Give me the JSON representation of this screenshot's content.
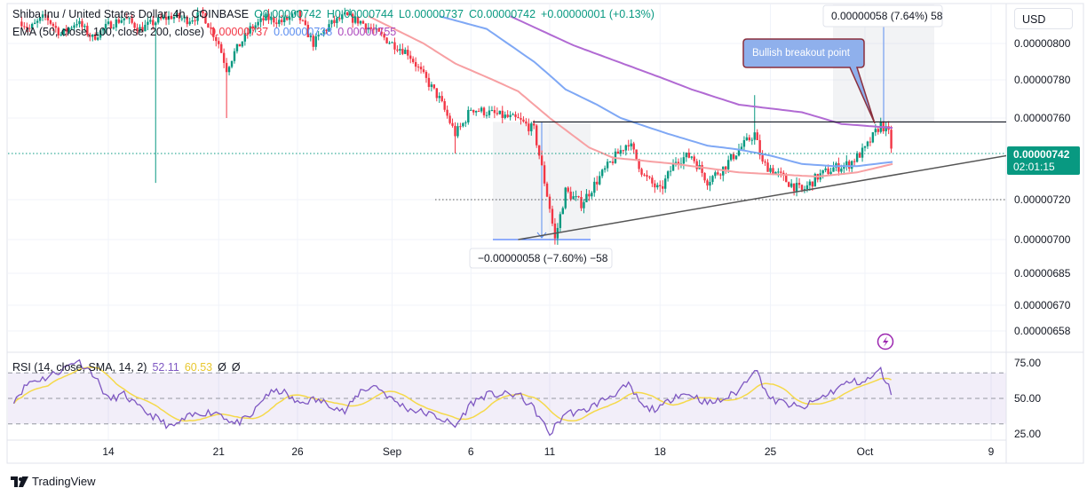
{
  "header": {
    "symbol": "Shiba Inu / United States Dollar, 4h, COINBASE",
    "open": "O0.00000742",
    "high": "H0.00000744",
    "low": "L0.00000737",
    "close": "C0.00000742",
    "change": "+0.00000001 (+0.13%)",
    "ema_label": "EMA (50, close, 100, close, 200, close)",
    "ema50": "0.00000737",
    "ema100": "0.00000738",
    "ema200": "0.00000755"
  },
  "currency_button": "USD",
  "current_price": {
    "value": "0.00000742",
    "countdown": "02:01:15"
  },
  "annotations": {
    "callout": "Bullish breakout point",
    "measure_down": "−0.00000058 (−7.60%) −58",
    "measure_up": "0.00000058 (7.64%) 58"
  },
  "rsi_legend": {
    "label": "RSI (14, close, SMA, 14, 2)",
    "rsi": "52.11",
    "sma": "60.53",
    "extra1": "Ø",
    "extra2": "Ø"
  },
  "branding": "TradingView",
  "icons": {
    "alert": "lightning-icon",
    "logo": "tradingview-logo"
  },
  "colors": {
    "up": "#089981",
    "down": "#f23645",
    "ema50": "#f7a0a3",
    "ema100": "#7fa8f5",
    "ema200": "#b16ad3",
    "rsi": "#7e57c2",
    "rsi_sma": "#f5d94a",
    "accent": "#2962ff"
  },
  "chart_data": [
    {
      "type": "candlestick",
      "interval": "4h",
      "price_axis": {
        "ticks": [
          "0.00000800",
          "0.00000780",
          "0.00000760",
          "0.00000720",
          "0.00000700",
          "0.00000685",
          "0.00000670",
          "0.00000658"
        ]
      },
      "time_axis": {
        "ticks": [
          "14",
          "21",
          "26",
          "Sep",
          "6",
          "11",
          "18",
          "25",
          "Oct",
          "9"
        ]
      },
      "close": [
        [
          "Aug 8 12:00",
          8.12e-06
        ],
        [
          "Aug 9",
          8.08e-06
        ],
        [
          "Aug 10",
          8.15e-06
        ],
        [
          "Aug 11",
          8.05e-06
        ],
        [
          "Aug 12",
          8.12e-06
        ],
        [
          "Aug 13",
          8.03e-06
        ],
        [
          "Aug 14",
          8.1e-06
        ],
        [
          "Aug 15",
          8.14e-06
        ],
        [
          "Aug 16",
          8.08e-06
        ],
        [
          "Aug 17",
          8.12e-06
        ],
        [
          "Aug 18",
          8.15e-06
        ],
        [
          "Aug 19",
          8.13e-06
        ],
        [
          "Aug 20",
          8.16e-06
        ],
        [
          "Aug 21",
          8e-06
        ],
        [
          "Aug 21 12:00",
          7.86e-06
        ],
        [
          "Aug 22",
          7.95e-06
        ],
        [
          "Aug 23",
          8.08e-06
        ],
        [
          "Aug 24",
          8.14e-06
        ],
        [
          "Aug 25",
          8.12e-06
        ],
        [
          "Aug 26",
          8.16e-06
        ],
        [
          "Aug 27",
          8e-06
        ],
        [
          "Aug 28",
          8.1e-06
        ],
        [
          "Aug 29",
          8.15e-06
        ],
        [
          "Aug 30",
          8.12e-06
        ],
        [
          "Aug 31",
          8.06e-06
        ],
        [
          "Sep 1",
          8e-06
        ],
        [
          "Sep 2",
          7.95e-06
        ],
        [
          "Sep 3",
          7.82e-06
        ],
        [
          "Sep 4",
          7.7e-06
        ],
        [
          "Sep 5",
          7.52e-06
        ],
        [
          "Sep 5 12:00",
          7.57e-06
        ],
        [
          "Sep 6",
          7.65e-06
        ],
        [
          "Sep 7",
          7.63e-06
        ],
        [
          "Sep 8",
          7.61e-06
        ],
        [
          "Sep 9",
          7.59e-06
        ],
        [
          "Sep 10",
          7.54e-06
        ],
        [
          "Sep 10 12:00",
          7.35e-06
        ],
        [
          "Sep 11",
          7.16e-06
        ],
        [
          "Sep 11 08:00",
          7e-06
        ],
        [
          "Sep 12",
          7.24e-06
        ],
        [
          "Sep 13",
          7.18e-06
        ],
        [
          "Sep 14",
          7.29e-06
        ],
        [
          "Sep 15",
          7.39e-06
        ],
        [
          "Sep 16",
          7.48e-06
        ],
        [
          "Sep 17",
          7.31e-06
        ],
        [
          "Sep 18",
          7.24e-06
        ],
        [
          "Sep 19",
          7.39e-06
        ],
        [
          "Sep 20",
          7.41e-06
        ],
        [
          "Sep 21",
          7.29e-06
        ],
        [
          "Sep 22",
          7.35e-06
        ],
        [
          "Sep 23",
          7.44e-06
        ],
        [
          "Sep 24",
          7.52e-06
        ],
        [
          "Sep 24 12:00",
          7.37e-06
        ],
        [
          "Sep 25",
          7.35e-06
        ],
        [
          "Sep 26",
          7.29e-06
        ],
        [
          "Sep 27",
          7.24e-06
        ],
        [
          "Sep 28",
          7.31e-06
        ],
        [
          "Sep 29",
          7.35e-06
        ],
        [
          "Sep 30",
          7.37e-06
        ],
        [
          "Oct 1",
          7.44e-06
        ],
        [
          "Oct 2",
          7.57e-06
        ],
        [
          "Oct 2 12:00",
          7.52e-06
        ],
        [
          "Oct 2 18:00",
          7.42e-06
        ]
      ],
      "wicks": [
        [
          "Aug 17",
          "low",
          7.28e-06
        ],
        [
          "Aug 21 12:00",
          "low",
          7.6e-06
        ],
        [
          "Sep 24",
          "high",
          7.72e-06
        ],
        [
          "Sep 5",
          "low",
          7.42e-06
        ]
      ],
      "ema50": [
        [
          "Aug 30 12:00",
          8.15e-06
        ],
        [
          "Sep 3",
          8e-06
        ],
        [
          "Sep 5",
          7.89e-06
        ],
        [
          "Sep 9",
          7.74e-06
        ],
        [
          "Sep 10",
          7.67e-06
        ],
        [
          "Sep 11",
          7.6e-06
        ],
        [
          "Sep 13 12:00",
          7.45e-06
        ],
        [
          "Sep 15",
          7.4e-06
        ],
        [
          "Sep 19",
          7.37e-06
        ],
        [
          "Sep 23",
          7.33e-06
        ],
        [
          "Sep 28",
          7.31e-06
        ],
        [
          "Sep 30 12:00",
          7.33e-06
        ],
        [
          "Oct 2 18:00",
          7.37e-06
        ]
      ],
      "ema100": [
        [
          "Sep 4",
          8.15e-06
        ],
        [
          "Sep 7",
          8.08e-06
        ],
        [
          "Sep 10",
          7.9e-06
        ],
        [
          "Sep 12",
          7.75e-06
        ],
        [
          "Sep 14",
          7.67e-06
        ],
        [
          "Sep 15 12:00",
          7.6e-06
        ],
        [
          "Sep 18 12:00",
          7.52e-06
        ],
        [
          "Sep 21",
          7.46e-06
        ],
        [
          "Sep 23",
          7.44e-06
        ],
        [
          "Sep 25",
          7.41e-06
        ],
        [
          "Sep 27",
          7.37e-06
        ],
        [
          "Sep 29",
          7.36e-06
        ],
        [
          "Sep 30 12:00",
          7.36e-06
        ],
        [
          "Oct 2 18:00",
          7.38e-06
        ]
      ],
      "ema200": [
        [
          "Sep 8 12:00",
          8.15e-06
        ],
        [
          "Sep 12 12:00",
          7.99e-06
        ],
        [
          "Sep 20",
          7.75e-06
        ],
        [
          "Sep 23",
          7.67e-06
        ],
        [
          "Sep 27",
          7.63e-06
        ],
        [
          "Sep 29 12:00",
          7.57e-06
        ],
        [
          "Oct 2 18:00",
          7.55e-06
        ]
      ],
      "resistance_level": 7.58e-06,
      "support_level": 7.2e-06,
      "trendline": [
        [
          "Sep 9",
          7e-06
        ],
        [
          "Oct 10",
          7.41e-06
        ]
      ]
    },
    {
      "type": "line",
      "name": "RSI",
      "ylim": [
        0,
        100
      ],
      "levels": [
        70,
        50,
        30
      ],
      "axis_ticks": [
        "75.00",
        "50.00",
        "25.00"
      ],
      "rsi": [
        [
          "Aug 8",
          49
        ],
        [
          "Aug 9",
          63
        ],
        [
          "Aug 10",
          66
        ],
        [
          "Aug 11",
          72
        ],
        [
          "Aug 12",
          80
        ],
        [
          "Aug 13",
          70
        ],
        [
          "Aug 14",
          49
        ],
        [
          "Aug 15",
          53
        ],
        [
          "Aug 16",
          42
        ],
        [
          "Aug 17",
          35
        ],
        [
          "Aug 18",
          27
        ],
        [
          "Aug 19",
          35
        ],
        [
          "Aug 20",
          39
        ],
        [
          "Aug 21",
          39
        ],
        [
          "Aug 22",
          30
        ],
        [
          "Aug 23",
          35
        ],
        [
          "Aug 24",
          53
        ],
        [
          "Aug 25",
          56
        ],
        [
          "Aug 26",
          46
        ],
        [
          "Aug 27",
          49
        ],
        [
          "Aug 28",
          46
        ],
        [
          "Aug 29",
          39
        ],
        [
          "Aug 30",
          56
        ],
        [
          "Aug 31",
          60
        ],
        [
          "Sep 1",
          49
        ],
        [
          "Sep 2",
          42
        ],
        [
          "Sep 3",
          39
        ],
        [
          "Sep 4",
          35
        ],
        [
          "Sep 5",
          28
        ],
        [
          "Sep 6",
          46
        ],
        [
          "Sep 7",
          53
        ],
        [
          "Sep 8",
          53
        ],
        [
          "Sep 9",
          53
        ],
        [
          "Sep 10",
          42
        ],
        [
          "Sep 11",
          22
        ],
        [
          "Sep 12",
          39
        ],
        [
          "Sep 13",
          39
        ],
        [
          "Sep 14",
          46
        ],
        [
          "Sep 15",
          53
        ],
        [
          "Sep 16",
          60
        ],
        [
          "Sep 17",
          42
        ],
        [
          "Sep 18",
          42
        ],
        [
          "Sep 19",
          53
        ],
        [
          "Sep 20",
          53
        ],
        [
          "Sep 21",
          46
        ],
        [
          "Sep 22",
          49
        ],
        [
          "Sep 23",
          56
        ],
        [
          "Sep 24",
          74
        ],
        [
          "Sep 25",
          49
        ],
        [
          "Sep 26",
          46
        ],
        [
          "Sep 27",
          42
        ],
        [
          "Sep 28",
          49
        ],
        [
          "Sep 29",
          56
        ],
        [
          "Sep 30",
          63
        ],
        [
          "Oct 1",
          63
        ],
        [
          "Oct 2",
          72
        ],
        [
          "Oct 2 18:00",
          52.11
        ]
      ]
    }
  ]
}
